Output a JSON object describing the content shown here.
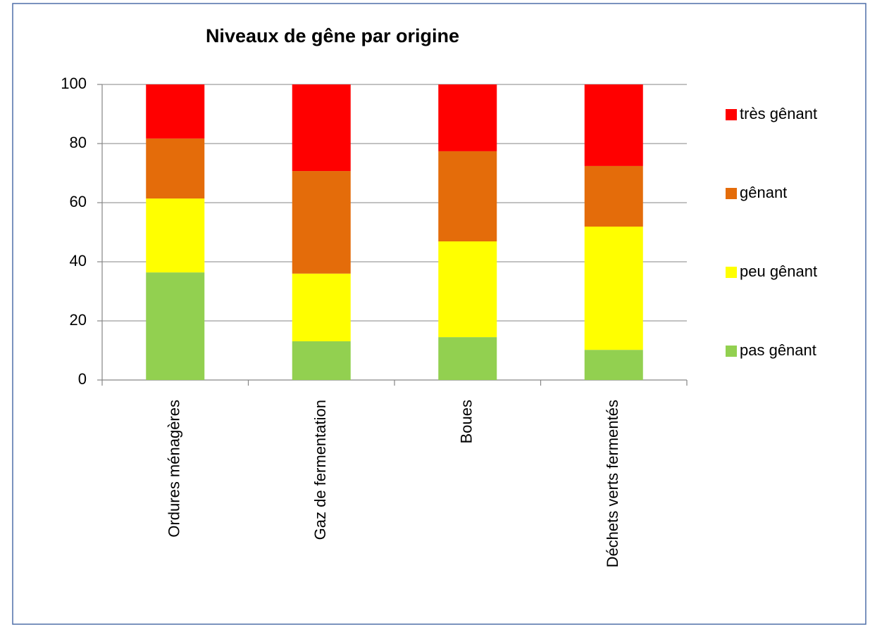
{
  "chart_data": {
    "type": "stacked_bar",
    "title": "Niveaux de gêne par origine",
    "categories": [
      "Ordures ménagères",
      "Gaz de fermentation",
      "Boues",
      "Déchets verts fermentés"
    ],
    "series": [
      {
        "name": "pas gênant",
        "color": "#92d050",
        "values": [
          36.4,
          13.1,
          14.5,
          10.2
        ]
      },
      {
        "name": "peu gênant",
        "color": "#ffff00",
        "values": [
          25,
          22.9,
          32.4,
          41.7
        ]
      },
      {
        "name": "gênant",
        "color": "#e46c0a",
        "values": [
          20.3,
          34.7,
          30.5,
          20.5
        ]
      },
      {
        "name": "très gênant",
        "color": "#ff0000",
        "values": [
          18.3,
          29.3,
          22.6,
          27.6
        ]
      }
    ],
    "ylim": [
      0,
      100
    ],
    "yticks": [
      0,
      20,
      40,
      60,
      80,
      100
    ],
    "grid": true,
    "legend": "right"
  }
}
